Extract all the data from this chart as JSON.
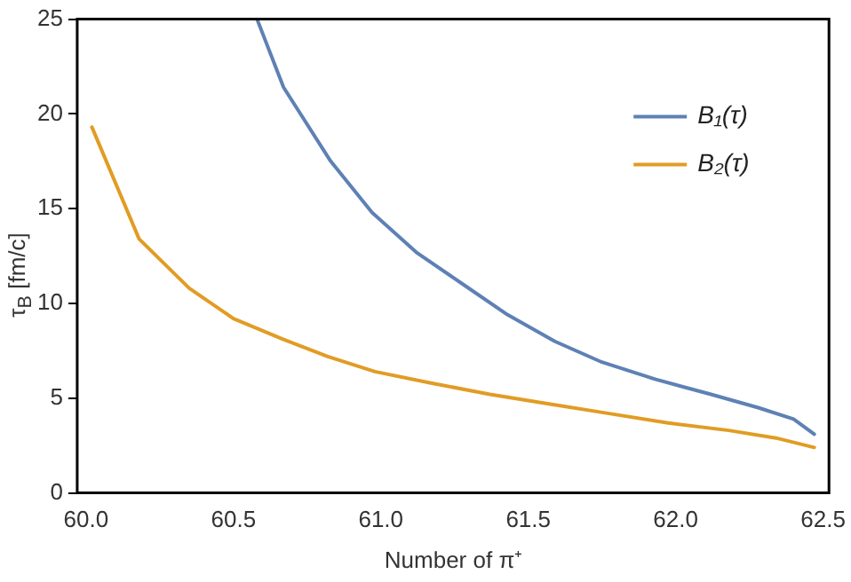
{
  "chart_data": {
    "type": "line",
    "xlabel": "Number of π⁺",
    "ylabel": "τ$_{B}$ [fm/c]",
    "xlim": [
      59.97,
      62.52
    ],
    "ylim": [
      0,
      25
    ],
    "xticks": [
      {
        "value": 60,
        "label": "60.0"
      },
      {
        "value": 60.5,
        "label": "60.5"
      },
      {
        "value": 61,
        "label": "61.0"
      },
      {
        "value": 61.5,
        "label": "61.5"
      },
      {
        "value": 62,
        "label": "62.0"
      },
      {
        "value": 62.5,
        "label": "62.5"
      }
    ],
    "yticks": [
      0,
      5,
      10,
      15,
      20,
      25
    ],
    "grid": false,
    "legend": "top right",
    "marker": "none",
    "line_style": "solid",
    "series": [
      {
        "name": "B₁(τ)",
        "color": "#5e81b5",
        "x": [
          60.58,
          60.67,
          60.83,
          60.97,
          61.12,
          61.27,
          61.43,
          61.59,
          61.75,
          61.93,
          62.12,
          62.28,
          62.4,
          62.47
        ],
        "values": [
          25,
          21.4,
          17.5,
          14.8,
          12.7,
          11.1,
          9.4,
          8.0,
          6.9,
          6.0,
          5.2,
          4.5,
          3.9,
          3.1
        ]
      },
      {
        "name": "B₂(τ)",
        "color": "#e19c24",
        "x": [
          60.02,
          60.18,
          60.35,
          60.5,
          60.67,
          60.82,
          60.98,
          61.17,
          61.37,
          61.57,
          61.77,
          61.97,
          62.18,
          62.34,
          62.47
        ],
        "values": [
          19.3,
          13.4,
          10.8,
          9.2,
          8.1,
          7.2,
          6.4,
          5.8,
          5.2,
          4.7,
          4.2,
          3.7,
          3.3,
          2.9,
          2.4
        ]
      }
    ]
  }
}
